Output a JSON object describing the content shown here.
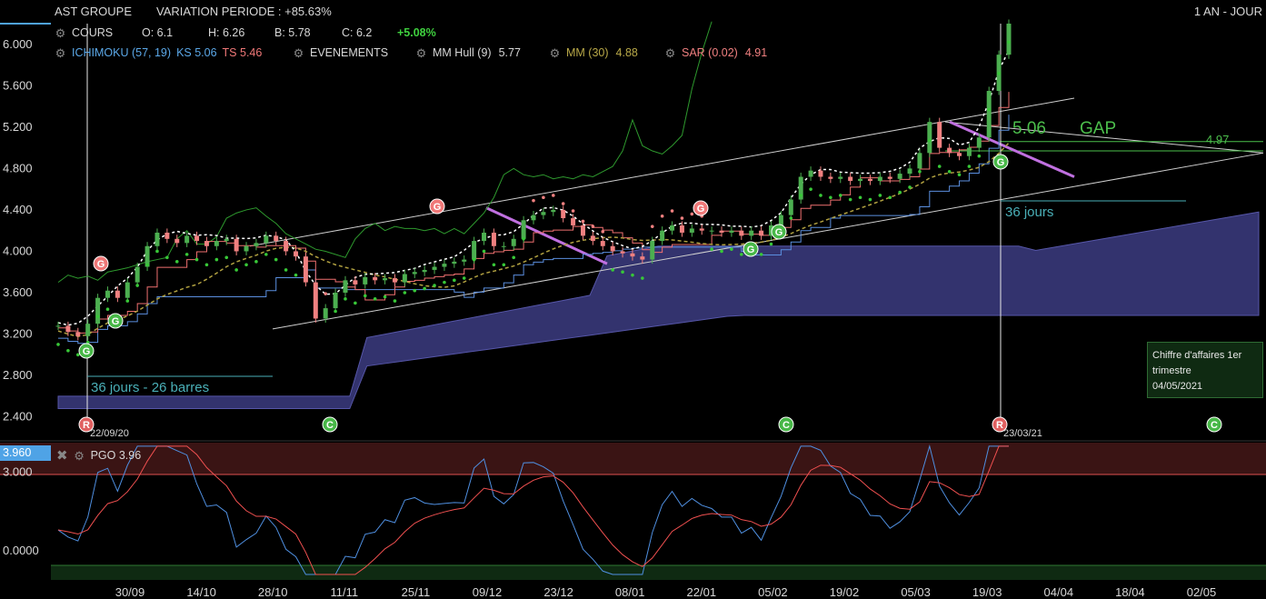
{
  "header": {
    "symbol": "AST GROUPE",
    "variation": "VARIATION PERIODE : +85.63%",
    "period": "1 AN - JOUR"
  },
  "legend_line1": {
    "cours": "COURS",
    "open": "O: 6.1",
    "high": "H: 6.26",
    "low": "B: 5.78",
    "close": "C: 6.2",
    "change": "+5.08%"
  },
  "legend_line2": {
    "ichimoku": "ICHIMOKU (57, 19)",
    "ks": "KS 5.06",
    "ts": "TS 5.46",
    "events": "EVENEMENTS",
    "hull": "MM Hull (9)",
    "hull_val": "5.77",
    "mm": "MM (30)",
    "mm_val": "4.88",
    "sar": "SAR (0.02)",
    "sar_val": "4.91"
  },
  "pgo": {
    "label": "PGO 3.96",
    "current_box": "3.960",
    "y_labels": [
      "3.000",
      "0.0000"
    ]
  },
  "annotations": {
    "days_left": "36 jours - 26 barres",
    "days_right": "36 jours",
    "gap_value": "5.06",
    "gap_label": "GAP",
    "level": "4.97",
    "date_left": "22/09/20",
    "date_right": "23/03/21",
    "note_line1": "Chiffre d'affaires 1er",
    "note_line2": "trimestre",
    "note_date": "04/05/2021"
  },
  "colors": {
    "up_candle": "#4caf50",
    "down_candle": "#f08080",
    "kijun": "#5b8fe0",
    "tenkan": "#f07070",
    "cloud": "#33336e",
    "chikou": "#2e9a2e",
    "sar": "#38c838",
    "mm30": "#b0a040",
    "hull": "#ffffff",
    "pgo": "#4f8fe0",
    "pgo_signal": "#f05050"
  },
  "chart_data": {
    "type": "line",
    "title": "AST GROUPE",
    "ylim": [
      2.3,
      6.2
    ],
    "y_ticks": [
      "6.000",
      "5.600",
      "5.200",
      "4.800",
      "4.400",
      "4.000",
      "3.600",
      "3.200",
      "2.800",
      "2.400"
    ],
    "x_ticks": [
      "30/09",
      "14/10",
      "28/10",
      "11/11",
      "25/11",
      "09/12",
      "23/12",
      "08/01",
      "22/01",
      "05/02",
      "19/02",
      "05/03",
      "19/03",
      "04/04",
      "18/04",
      "02/05"
    ],
    "series": [
      {
        "name": "COURS",
        "values": [
          3.28,
          3.22,
          3.18,
          3.3,
          3.55,
          3.62,
          3.55,
          3.7,
          3.85,
          4.05,
          4.18,
          4.12,
          4.08,
          4.15,
          4.1,
          4.05,
          4.1,
          4.12,
          4.0,
          4.05,
          4.08,
          4.15,
          4.1,
          4.0,
          3.95,
          3.7,
          3.35,
          3.45,
          3.6,
          3.72,
          3.68,
          3.75,
          3.72,
          3.74,
          3.7,
          3.78,
          3.8,
          3.82,
          3.85,
          3.88,
          3.9,
          3.92,
          4.1,
          4.18,
          4.05,
          4.05,
          4.12,
          4.3,
          4.35,
          4.38,
          4.4,
          4.32,
          4.25,
          4.15,
          4.1,
          4.05,
          4.0,
          3.98,
          3.95,
          3.92,
          4.1,
          4.2,
          4.25,
          4.18,
          4.22,
          4.2,
          4.2,
          4.18,
          4.2,
          4.15,
          4.2,
          4.15,
          4.25,
          4.35,
          4.5,
          4.72,
          4.78,
          4.72,
          4.7,
          4.72,
          4.68,
          4.7,
          4.68,
          4.72,
          4.7,
          4.75,
          4.8,
          4.95,
          5.25,
          5.0,
          4.95,
          4.92,
          5.0,
          5.1,
          5.55,
          5.9,
          6.2
        ]
      }
    ],
    "pgo_ylim": [
      -0.9,
      4.1
    ]
  }
}
